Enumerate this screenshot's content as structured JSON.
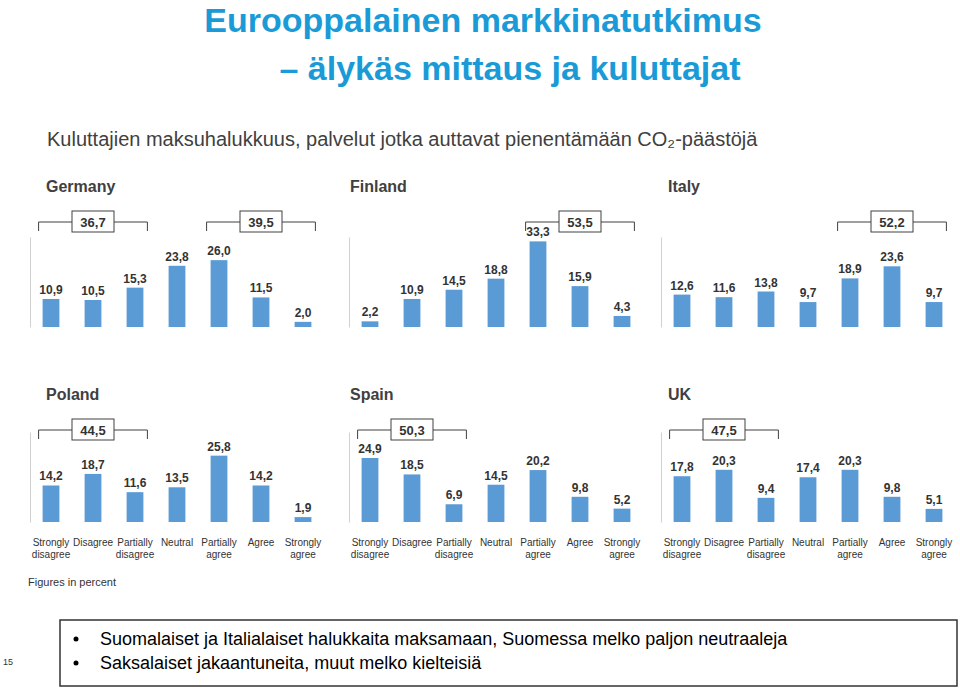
{
  "slide": {
    "title": "Eurooppalainen markkinatutkimus",
    "title_line2": "– älykäs mittaus ja kuluttajat",
    "subtitle": "Kuluttajien maksuhalukkuus, palvelut jotka auttavat pienentämään CO₂-päästöjä",
    "footnote": "Figures in percent",
    "bullets": [
      "Suomalaiset ja Italialaiset halukkaita maksamaan, Suomessa melko paljon neutraaleja",
      "Saksalaiset jakaantuneita, muut melko kielteisiä"
    ],
    "page_number": 15
  },
  "chart_data": [
    {
      "type": "bar",
      "title": "Germany",
      "categories": [
        null,
        null,
        null,
        null,
        null,
        null,
        null
      ],
      "values": [
        10.9,
        10.5,
        15.3,
        23.8,
        26.0,
        11.5,
        2.0
      ],
      "value_labels": [
        "10,9",
        "10,5",
        "15,3",
        "23,8",
        "26,0",
        "11,5",
        "2,0"
      ],
      "color": "#5b9bd5",
      "ylim": [
        0,
        35
      ],
      "tick_labels": false,
      "data_labels": true,
      "annotations": [
        {
          "text": "36,7",
          "start": 0,
          "end": 2
        },
        {
          "text": "39,5",
          "start": 4,
          "end": 6
        }
      ]
    },
    {
      "type": "bar",
      "title": "Finland",
      "categories": [
        null,
        null,
        null,
        null,
        null,
        null,
        null
      ],
      "values": [
        2.2,
        10.9,
        14.5,
        18.8,
        33.3,
        15.9,
        4.3
      ],
      "value_labels": [
        "2,2",
        "10,9",
        "14,5",
        "18,8",
        "33,3",
        "15,9",
        "4,3"
      ],
      "color": "#5b9bd5",
      "ylim": [
        0,
        35
      ],
      "tick_labels": false,
      "data_labels": true,
      "annotations": [
        {
          "text": "53,5",
          "start": 4,
          "end": 6
        }
      ]
    },
    {
      "type": "bar",
      "title": "Italy",
      "categories": [
        null,
        null,
        null,
        null,
        null,
        null,
        null
      ],
      "values": [
        12.6,
        11.6,
        13.8,
        9.7,
        18.9,
        23.6,
        9.7
      ],
      "value_labels": [
        "12,6",
        "11,6",
        "13,8",
        "9,7",
        "18,9",
        "23,6",
        "9,7"
      ],
      "color": "#5b9bd5",
      "ylim": [
        0,
        35
      ],
      "tick_labels": false,
      "data_labels": true,
      "annotations": [
        {
          "text": "52,2",
          "start": 4,
          "end": 6
        }
      ]
    },
    {
      "type": "bar",
      "title": "Poland",
      "categories": [
        "Strongly disagree",
        "Disagree",
        "Partially disagree",
        "Neutral",
        "Partially agree",
        "Agree",
        "Strongly agree"
      ],
      "values": [
        14.2,
        18.7,
        11.6,
        13.5,
        25.8,
        14.2,
        1.9
      ],
      "value_labels": [
        "14,2",
        "18,7",
        "11,6",
        "13,5",
        "25,8",
        "14,2",
        "1,9"
      ],
      "color": "#5b9bd5",
      "ylim": [
        0,
        35
      ],
      "tick_labels": false,
      "data_labels": true,
      "annotations": [
        {
          "text": "44,5",
          "start": 0,
          "end": 2
        }
      ]
    },
    {
      "type": "bar",
      "title": "Spain",
      "categories": [
        "Strongly disagree",
        "Disagree",
        "Partially disagree",
        "Neutral",
        "Partially agree",
        "Agree",
        "Strongly agree"
      ],
      "values": [
        24.9,
        18.5,
        6.9,
        14.5,
        20.2,
        9.8,
        5.2
      ],
      "value_labels": [
        "24,9",
        "18,5",
        "6,9",
        "14,5",
        "20,2",
        "9,8",
        "5,2"
      ],
      "color": "#5b9bd5",
      "ylim": [
        0,
        35
      ],
      "tick_labels": false,
      "data_labels": true,
      "annotations": [
        {
          "text": "50,3",
          "start": 0,
          "end": 2
        }
      ]
    },
    {
      "type": "bar",
      "title": "UK",
      "categories": [
        "Strongly disagree",
        "Disagree",
        "Partially disagree",
        "Neutral",
        "Partially agree",
        "Agree",
        "Strongly agree"
      ],
      "values": [
        17.8,
        20.3,
        9.4,
        17.4,
        20.3,
        9.8,
        5.1
      ],
      "value_labels": [
        "17,8",
        "20,3",
        "9,4",
        "17,4",
        "20,3",
        "9,8",
        "5,1"
      ],
      "color": "#5b9bd5",
      "ylim": [
        0,
        35
      ],
      "tick_labels": false,
      "data_labels": true,
      "annotations": [
        {
          "text": "47,5",
          "start": 0,
          "end": 2
        }
      ]
    }
  ]
}
